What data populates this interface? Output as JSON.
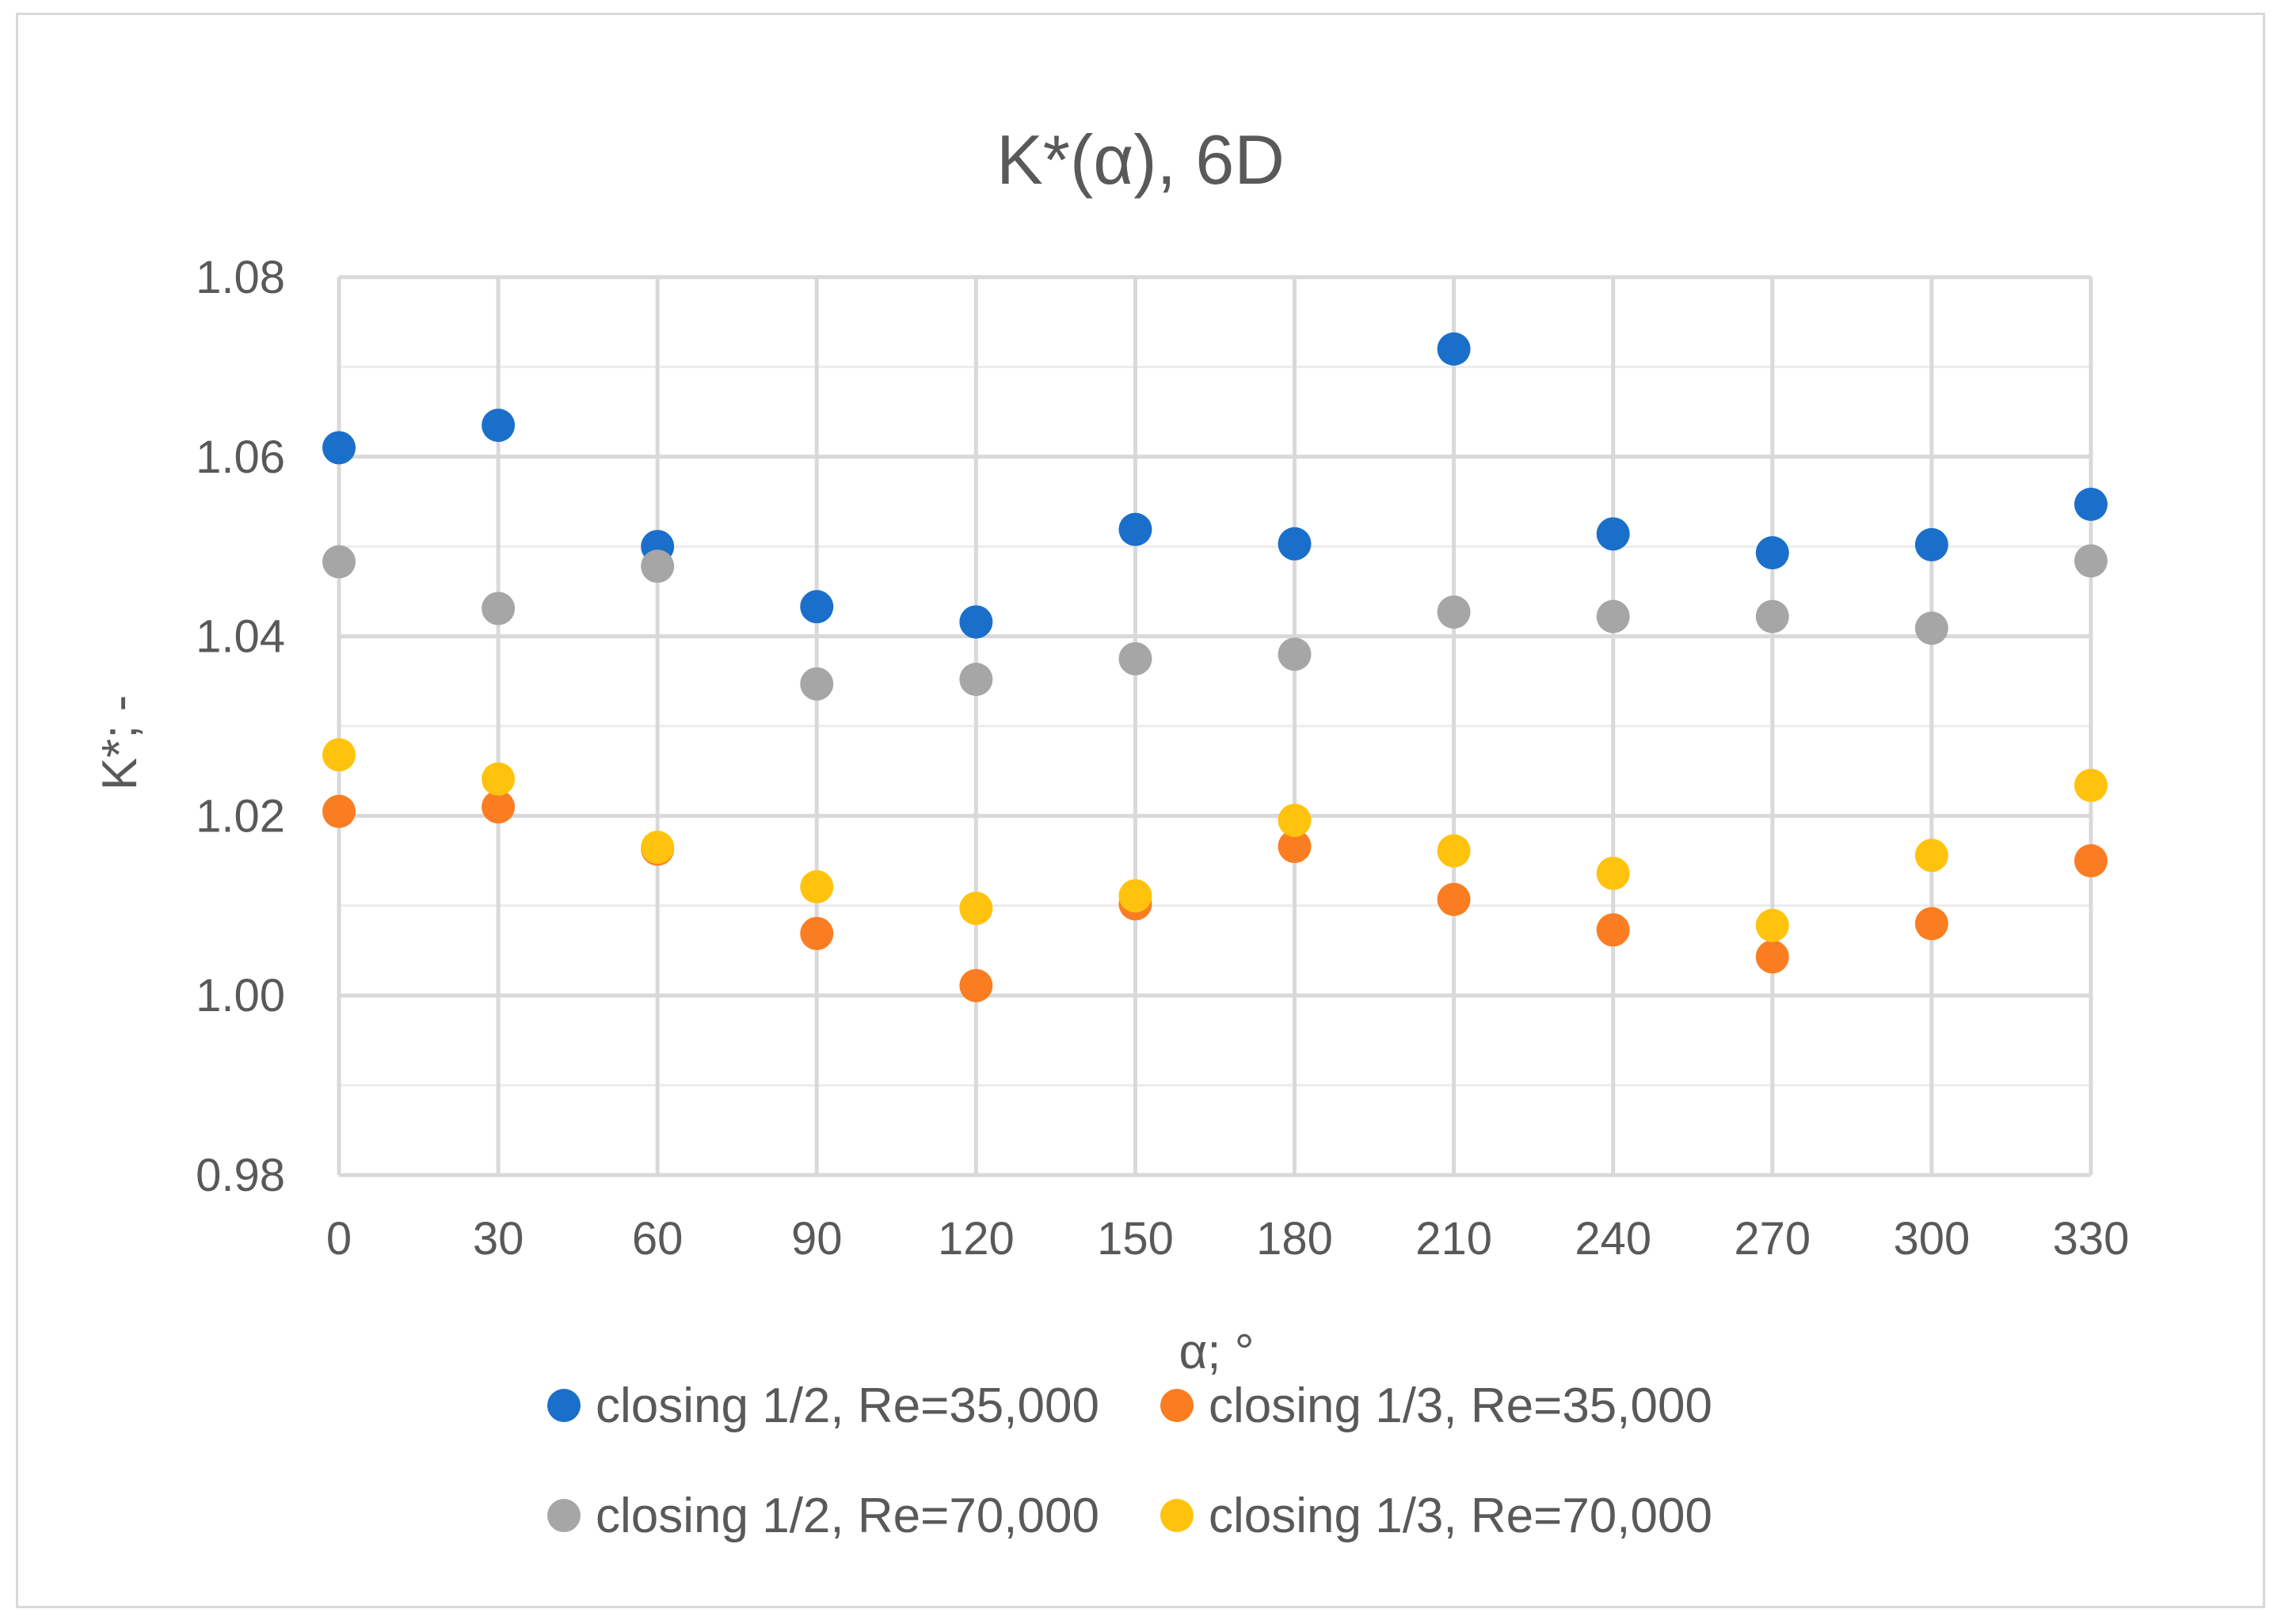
{
  "chart_data": {
    "type": "scatter",
    "title": "K*(α), 6D",
    "xlabel": "α; °",
    "ylabel": "K*; -",
    "x": [
      0,
      30,
      60,
      90,
      120,
      150,
      180,
      210,
      240,
      270,
      300,
      330
    ],
    "x_tick_labels": [
      "0",
      "30",
      "60",
      "90",
      "120",
      "150",
      "180",
      "210",
      "240",
      "270",
      "300",
      "330"
    ],
    "xlim": [
      0,
      330
    ],
    "ylim": [
      0.98,
      1.08
    ],
    "y_major_step": 0.02,
    "y_minor_step": 0.01,
    "y_tick_labels": [
      "0.98",
      "1.00",
      "1.02",
      "1.04",
      "1.06",
      "1.08"
    ],
    "grid": true,
    "legend_position": "bottom",
    "series": [
      {
        "name": "closing 1/2, Re=35,000",
        "color": "#1a6fcb",
        "values": [
          1.061,
          1.0635,
          1.05,
          1.0433,
          1.0416,
          1.0519,
          1.0503,
          1.072,
          1.0514,
          1.0493,
          1.0502,
          1.0547
        ]
      },
      {
        "name": "closing 1/3, Re=35,000",
        "color": "#fb7d22",
        "values": [
          1.0205,
          1.021,
          1.0163,
          1.0069,
          1.0011,
          1.0102,
          1.0166,
          1.0107,
          1.0073,
          1.0043,
          1.008,
          1.015
        ]
      },
      {
        "name": "closing 1/2, Re=70,000",
        "color": "#a6a6a6",
        "values": [
          1.0483,
          1.0431,
          1.0478,
          1.0347,
          1.0352,
          1.0375,
          1.038,
          1.0427,
          1.0422,
          1.0422,
          1.0409,
          1.0484
        ]
      },
      {
        "name": "closing 1/3, Re=70,000",
        "color": "#ffc30d",
        "values": [
          1.0268,
          1.0241,
          1.0165,
          1.0121,
          1.0097,
          1.0111,
          1.0195,
          1.0161,
          1.0136,
          1.0078,
          1.0156,
          1.0234
        ]
      }
    ]
  }
}
